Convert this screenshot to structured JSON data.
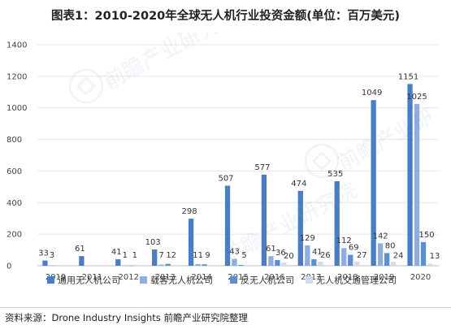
{
  "title": "图表1：2010-2020年全球无人机行业投资金额(单位：百万美元)",
  "source": "资料来源：Drone Industry Insights 前瞻产业研究院整理",
  "watermark": "前瞻产业研究院",
  "colors": [
    "#4a7ec4",
    "#8eaee0",
    "#5a8fd0",
    "#cfdcf0"
  ],
  "chart_data": {
    "type": "bar",
    "title": "图表1：2010-2020年全球无人机行业投资金额(单位：百万美元)",
    "xlabel": "",
    "ylabel": "",
    "ylim": [
      0,
      1400
    ],
    "yticks": [
      0,
      200,
      400,
      600,
      800,
      1000,
      1200,
      1400
    ],
    "grid": true,
    "legend_position": "bottom",
    "categories": [
      "2010",
      "2011",
      "2012",
      "2013",
      "2014",
      "2015",
      "2016",
      "2017",
      "2018",
      "2019",
      "2020"
    ],
    "series": [
      {
        "name": "通用无人机公司",
        "values": [
          33,
          61,
          41,
          103,
          298,
          507,
          577,
          474,
          535,
          1049,
          1151
        ]
      },
      {
        "name": "载客无人机公司",
        "values": [
          3,
          null,
          1,
          7,
          11,
          43,
          61,
          129,
          112,
          142,
          1025
        ]
      },
      {
        "name": "反无人机公司",
        "values": [
          null,
          null,
          1,
          12,
          9,
          5,
          36,
          41,
          69,
          80,
          150
        ]
      },
      {
        "name": "无人机交通管理公司",
        "values": [
          null,
          null,
          null,
          null,
          null,
          null,
          20,
          26,
          27,
          24,
          13
        ]
      }
    ]
  }
}
